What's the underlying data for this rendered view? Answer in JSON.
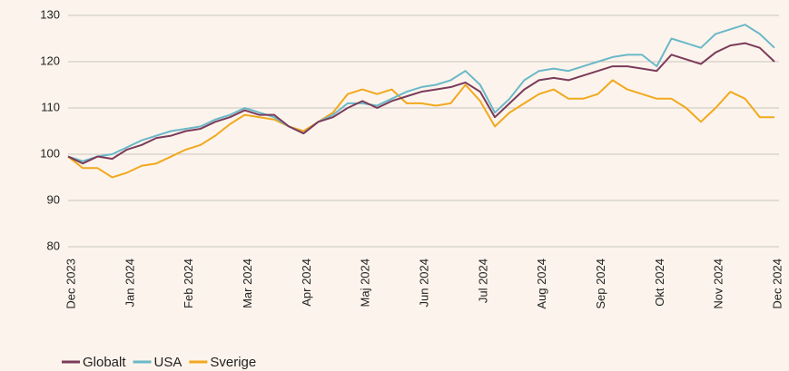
{
  "chart_data": {
    "type": "line",
    "categories": [
      "Dec 2023",
      null,
      null,
      null,
      "Jan 2024",
      null,
      null,
      null,
      "Feb 2024",
      null,
      null,
      null,
      "Mar 2024",
      null,
      null,
      null,
      "Apr 2024",
      null,
      null,
      null,
      "Maj 2024",
      null,
      null,
      null,
      "Jun 2024",
      null,
      null,
      null,
      "Jul 2024",
      null,
      null,
      null,
      "Aug 2024",
      null,
      null,
      null,
      "Sep 2024",
      null,
      null,
      null,
      "Okt 2024",
      null,
      null,
      null,
      "Nov 2024",
      null,
      null,
      null,
      "Dec 2024"
    ],
    "series": [
      {
        "name": "Globalt",
        "color": "#7b3b5a",
        "values": [
          99.5,
          98,
          99.5,
          99,
          101,
          102,
          103.5,
          104,
          105,
          105.5,
          107,
          108,
          109.5,
          108.5,
          108.5,
          106,
          104.5,
          107,
          108,
          110,
          111.5,
          110,
          111.5,
          112.5,
          113.5,
          114,
          114.5,
          115.5,
          113.5,
          108,
          111,
          114,
          116,
          116.5,
          116,
          117,
          118,
          119,
          119,
          118.5,
          118,
          121.5,
          120.5,
          119.5,
          122,
          123.5,
          124,
          123,
          120
        ]
      },
      {
        "name": "USA",
        "color": "#6bb8c8",
        "values": [
          99.5,
          98.5,
          99.5,
          100,
          101.5,
          103,
          104,
          105,
          105.5,
          106,
          107.5,
          108.5,
          110,
          109,
          108,
          106,
          104.5,
          107,
          108.5,
          111,
          111,
          110.5,
          112,
          113.5,
          114.5,
          115,
          116,
          118,
          115,
          109,
          112,
          116,
          118,
          118.5,
          118,
          119,
          120,
          121,
          121.5,
          121.5,
          119,
          125,
          124,
          123,
          126,
          127,
          128,
          126,
          123
        ]
      },
      {
        "name": "Sverige",
        "color": "#f2a81d",
        "values": [
          99.5,
          97,
          97,
          95,
          96,
          97.5,
          98,
          99.5,
          101,
          102,
          104,
          106.5,
          108.5,
          108,
          107.5,
          106,
          105,
          107,
          109,
          113,
          114,
          113,
          114,
          111,
          111,
          110.5,
          111,
          115,
          111.5,
          106,
          109,
          111,
          113,
          114,
          112,
          112,
          113,
          116,
          114,
          113,
          112,
          112,
          110,
          107,
          110,
          113.5,
          112,
          108,
          108
        ]
      }
    ],
    "ylim": [
      80,
      130
    ],
    "yticks": [
      80,
      90,
      100,
      110,
      120,
      130
    ],
    "grid": true
  }
}
